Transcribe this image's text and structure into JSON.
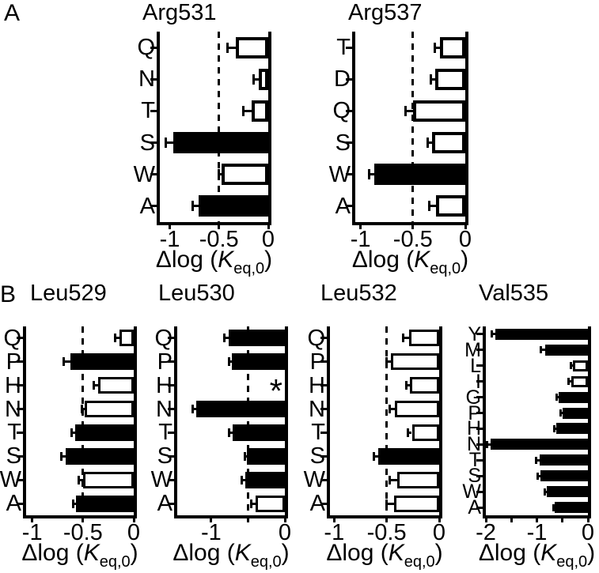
{
  "figure_labels": {
    "panel_a": "A",
    "panel_b": "B"
  },
  "xlabel_parts": {
    "prefix": "Δlog (",
    "symbol": "K",
    "subscript": "eq,0",
    "suffix": ")"
  },
  "chart_data": [
    {
      "id": "arg531",
      "type": "bar",
      "orientation": "horizontal",
      "title": "Arg531",
      "categories": [
        "Q",
        "N",
        "T",
        "S",
        "W",
        "A"
      ],
      "values": [
        -0.33,
        -0.1,
        -0.17,
        -0.96,
        -0.47,
        -0.71
      ],
      "errors": [
        0.08,
        0.05,
        0.08,
        0.08,
        0.03,
        0.06
      ],
      "fills": [
        "white",
        "white",
        "white",
        "black",
        "white",
        "black"
      ],
      "xlim": [
        -1.1,
        0
      ],
      "xticks": [
        -1,
        -0.5,
        0
      ],
      "xtick_labels": [
        "-1",
        "-0.5",
        "0"
      ],
      "minor_xticks": [],
      "dashed_at": -0.5,
      "annotation": null,
      "xlabel": "Δlog (K_eq,0)"
    },
    {
      "id": "arg537",
      "type": "bar",
      "orientation": "horizontal",
      "title": "Arg537",
      "categories": [
        "T",
        "D",
        "Q",
        "S",
        "W",
        "A"
      ],
      "values": [
        -0.24,
        -0.29,
        -0.5,
        -0.32,
        -0.87,
        -0.28
      ],
      "errors": [
        0.05,
        0.04,
        0.07,
        0.04,
        0.05,
        0.06
      ],
      "fills": [
        "white",
        "white",
        "white",
        "white",
        "black",
        "white"
      ],
      "xlim": [
        -1.05,
        0
      ],
      "xticks": [
        -1,
        -0.5,
        0
      ],
      "xtick_labels": [
        "-1",
        "-0.5",
        "0"
      ],
      "minor_xticks": [],
      "dashed_at": -0.5,
      "annotation": null,
      "xlabel": "Δlog (K_eq,0)"
    },
    {
      "id": "leu529",
      "type": "bar",
      "orientation": "horizontal",
      "title": "Leu529",
      "categories": [
        "Q",
        "P",
        "H",
        "N",
        "T",
        "S",
        "W",
        "A"
      ],
      "values": [
        -0.14,
        -0.62,
        -0.35,
        -0.48,
        -0.58,
        -0.67,
        -0.5,
        -0.57
      ],
      "errors": [
        0.04,
        0.07,
        0.04,
        0.03,
        0.03,
        0.04,
        0.04,
        0.03
      ],
      "fills": [
        "white",
        "black",
        "white",
        "white",
        "black",
        "black",
        "white",
        "black"
      ],
      "xlim": [
        -1.06,
        0
      ],
      "xticks": [
        -1,
        -0.5,
        0
      ],
      "xtick_labels": [
        "-1",
        "-0.5",
        "0"
      ],
      "minor_xticks": [],
      "dashed_at": -0.5,
      "annotation": null,
      "xlabel": "Δlog (K_eq,0)"
    },
    {
      "id": "leu530",
      "type": "bar",
      "orientation": "horizontal",
      "title": "Leu530",
      "categories": [
        "Q",
        "P",
        "H",
        "N",
        "T",
        "S",
        "W",
        "A"
      ],
      "values": [
        -0.76,
        -0.72,
        null,
        -1.2,
        -0.71,
        -0.52,
        -0.54,
        -0.4
      ],
      "errors": [
        0.06,
        0.04,
        null,
        0.05,
        0.05,
        0.02,
        0.04,
        0.06
      ],
      "fills": [
        "black",
        "black",
        null,
        "black",
        "black",
        "black",
        "black",
        "white"
      ],
      "xlim": [
        -1.46,
        0
      ],
      "xticks": [
        -1,
        0
      ],
      "xtick_labels": [
        "-1",
        "0"
      ],
      "minor_xticks": [
        -0.5
      ],
      "dashed_at": -0.5,
      "annotation": {
        "text": "*",
        "category": "H",
        "value": -0.12
      },
      "xlabel": "Δlog (K_eq,0)"
    },
    {
      "id": "leu532",
      "type": "bar",
      "orientation": "horizontal",
      "title": "Leu532",
      "categories": [
        "Q",
        "P",
        "H",
        "N",
        "T",
        "S",
        "W",
        "A"
      ],
      "values": [
        -0.29,
        -0.46,
        -0.28,
        -0.42,
        -0.26,
        -0.58,
        -0.4,
        -0.43
      ],
      "errors": [
        0.05,
        0.04,
        0.03,
        0.05,
        0.04,
        0.04,
        0.07,
        0.07
      ],
      "fills": [
        "white",
        "white",
        "white",
        "white",
        "white",
        "black",
        "white",
        "white"
      ],
      "xlim": [
        -1.04,
        0
      ],
      "xticks": [
        -1,
        -0.5,
        0
      ],
      "xtick_labels": [
        "-1",
        "-0.5",
        "0"
      ],
      "minor_xticks": [],
      "dashed_at": -0.5,
      "annotation": null,
      "xlabel": "Δlog (K_eq,0)"
    },
    {
      "id": "val535",
      "type": "bar",
      "orientation": "horizontal",
      "title": "Val535",
      "categories": [
        "Y",
        "M",
        "L",
        "I",
        "G",
        "P",
        "H",
        "N",
        "T",
        "S",
        "W",
        "A"
      ],
      "values": [
        -1.82,
        -0.84,
        -0.3,
        -0.33,
        -0.58,
        -0.5,
        -0.62,
        -1.91,
        -0.95,
        -0.93,
        -0.8,
        -0.65
      ],
      "errors": [
        0.07,
        0.08,
        0.04,
        0.05,
        0.03,
        0.03,
        0.04,
        0.06,
        0.07,
        0.06,
        0.04,
        0.03
      ],
      "fills": [
        "black",
        "black",
        "white",
        "white",
        "black",
        "black",
        "black",
        "black",
        "black",
        "black",
        "black",
        "black"
      ],
      "xlim": [
        -2,
        0
      ],
      "xticks": [
        -2,
        -1,
        0
      ],
      "xtick_labels": [
        "-2",
        "-1",
        "0"
      ],
      "minor_xticks": [
        -1.5,
        -0.5
      ],
      "dashed_at": null,
      "annotation": null,
      "xlabel": "Δlog (K_eq,0)"
    }
  ]
}
